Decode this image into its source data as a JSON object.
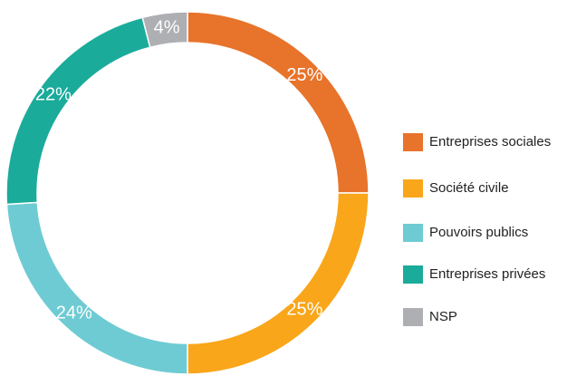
{
  "chart_data": {
    "type": "donut",
    "categories": [
      "Entreprises sociales",
      "Société civile",
      "Pouvoirs publics",
      "Entreprises privées",
      "NSP"
    ],
    "values": [
      25,
      25,
      24,
      22,
      4
    ],
    "value_labels": [
      "25%",
      "25%",
      "24%",
      "22%",
      "4%"
    ],
    "colors": [
      "#e8732a",
      "#f9a61a",
      "#6ecbd3",
      "#1aab9b",
      "#adafb2"
    ],
    "legend": "right"
  }
}
